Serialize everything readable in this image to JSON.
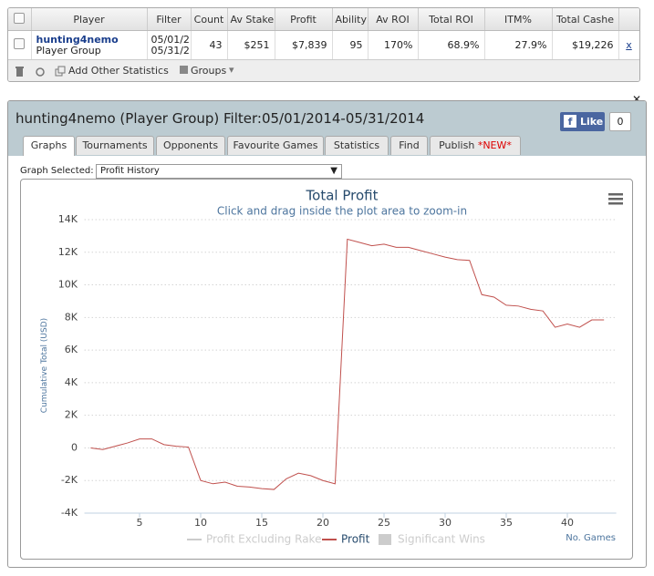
{
  "table": {
    "headers": [
      "Player",
      "Filter",
      "Count",
      "Av Stake",
      "Profit",
      "Ability",
      "Av ROI",
      "Total ROI",
      "ITM%",
      "Total Cashe"
    ],
    "row": {
      "player": "hunting4nemo",
      "group": "Player Group",
      "filter": [
        "05/01/2",
        "05/31/2"
      ],
      "cells": [
        "43",
        "$251",
        "$7,839",
        "95",
        "170%",
        "68.9%",
        "27.9%",
        "$19,226"
      ],
      "remove": "x"
    }
  },
  "toolbar": {
    "add": "Add Other Statistics",
    "groups": "Groups"
  },
  "panel": {
    "title": "hunting4nemo (Player Group) Filter:05/01/2014-05/31/2014",
    "like": "Like",
    "like_count": "0",
    "tabs": [
      "Graphs",
      "Tournaments",
      "Opponents",
      "Favourite Games",
      "Statistics",
      "Find",
      "Publish"
    ],
    "new_badge": "*NEW*",
    "graph_selected_label": "Graph Selected:",
    "graph_selected": "Profit History"
  },
  "chart_data": {
    "type": "line",
    "title": "Total Profit",
    "subtitle": "Click and drag inside the plot area to zoom-in",
    "ylabel": "Cumulative Total (USD)",
    "xlabel": "No. Games",
    "x": [
      1,
      2,
      3,
      4,
      5,
      6,
      7,
      8,
      9,
      10,
      11,
      12,
      13,
      14,
      15,
      16,
      17,
      18,
      19,
      20,
      21,
      22,
      23,
      24,
      25,
      26,
      27,
      28,
      29,
      30,
      31,
      32,
      33,
      34,
      35,
      36,
      37,
      38,
      39,
      40,
      41,
      42,
      43
    ],
    "series": [
      {
        "name": "Profit Excluding Rake",
        "color": "#cccccc",
        "visible": false
      },
      {
        "name": "Profit",
        "color": "#c0504d",
        "visible": true,
        "values": [
          0,
          -100,
          100,
          300,
          550,
          550,
          200,
          100,
          50,
          -2000,
          -2200,
          -2100,
          -2350,
          -2400,
          -2500,
          -2550,
          -1900,
          -1550,
          -1700,
          -2000,
          -2200,
          12800,
          12600,
          12400,
          12500,
          12300,
          12300,
          12100,
          11900,
          11700,
          11550,
          11500,
          9400,
          9250,
          8750,
          8700,
          8500,
          8400,
          7400,
          7600,
          7400,
          7850,
          7850
        ]
      },
      {
        "name": "Significant Wins",
        "color": "#cccccc",
        "visible": false
      }
    ],
    "xlim": [
      0.5,
      44
    ],
    "xticks": [
      5,
      10,
      15,
      20,
      25,
      30,
      35,
      40
    ],
    "ylim": [
      -4000,
      14000
    ],
    "yticks": [
      {
        "value": -4000,
        "label": "-4K"
      },
      {
        "value": -2000,
        "label": "-2K"
      },
      0,
      {
        "value": 2000,
        "label": "2K"
      },
      {
        "value": 4000,
        "label": "4K"
      },
      {
        "value": 6000,
        "label": "6K"
      },
      {
        "value": 8000,
        "label": "8K"
      },
      {
        "value": 10000,
        "label": "10K"
      },
      {
        "value": 12000,
        "label": "12K"
      },
      {
        "value": 14000,
        "label": "14K"
      }
    ],
    "grid": true
  }
}
